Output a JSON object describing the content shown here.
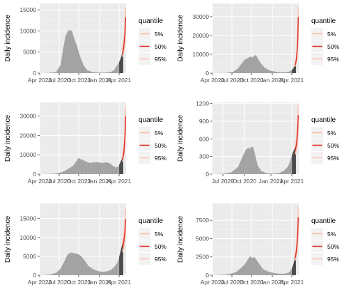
{
  "colors": {
    "panel_bg": "#ebebeb",
    "grid_major": "#ffffff",
    "grid_minor": "#f4f4f4",
    "bar_observed": "#a0a0a0",
    "bar_recent": "#4d4d4d",
    "q05": "#fcbba1",
    "q50": "#de2d26",
    "q95": "#fcc5b4"
  },
  "chart_data": [
    {
      "type": "bar",
      "ylabel": "Daily incidence",
      "x_ticks": [
        "Apr 2020",
        "Jul 2020",
        "Oct 2020",
        "Jan 2021",
        "Apr 2021"
      ],
      "y_ticks": [
        0,
        5000,
        10000,
        15000
      ],
      "y_tick_labels": [
        "0",
        "5000",
        "10000",
        "15000"
      ],
      "ylim": [
        0,
        16500
      ],
      "legend": {
        "title": "quantile",
        "labels": [
          "5%",
          "50%",
          "95%"
        ],
        "position": "right"
      },
      "grid": true,
      "observed_curve": [
        [
          0,
          0
        ],
        [
          40,
          60
        ],
        [
          70,
          250
        ],
        [
          90,
          2000
        ],
        [
          100,
          5500
        ],
        [
          110,
          8500
        ],
        [
          120,
          9800
        ],
        [
          128,
          10300
        ],
        [
          133,
          9900
        ],
        [
          138,
          10200
        ],
        [
          145,
          8800
        ],
        [
          160,
          6500
        ],
        [
          175,
          3800
        ],
        [
          190,
          1800
        ],
        [
          205,
          700
        ],
        [
          225,
          300
        ],
        [
          250,
          150
        ],
        [
          275,
          120
        ],
        [
          295,
          200
        ],
        [
          310,
          350
        ],
        [
          322,
          700
        ],
        [
          332,
          1600
        ],
        [
          342,
          2400
        ]
      ],
      "recent_curve": [
        [
          345,
          2700
        ],
        [
          350,
          3300
        ],
        [
          355,
          4200
        ],
        [
          360,
          5400
        ]
      ],
      "forecast": [
        [
          360,
          5400
        ],
        [
          365,
          7500
        ],
        [
          370,
          10800
        ],
        [
          373,
          15500
        ]
      ]
    },
    {
      "type": "bar",
      "ylabel": "Daily incidence",
      "x_ticks": [
        "Apr 2020",
        "Jul 2020",
        "Oct 2020",
        "Jan 2021",
        "Apr 2021"
      ],
      "y_ticks": [
        0,
        10000,
        20000,
        30000
      ],
      "y_tick_labels": [
        "0",
        "10000",
        "20000",
        "30000"
      ],
      "ylim": [
        0,
        37000
      ],
      "legend": {
        "title": "quantile",
        "labels": [
          "5%",
          "50%",
          "95%"
        ],
        "position": "right"
      },
      "grid": true,
      "observed_curve": [
        [
          0,
          0
        ],
        [
          60,
          100
        ],
        [
          90,
          800
        ],
        [
          110,
          2500
        ],
        [
          125,
          5000
        ],
        [
          140,
          7200
        ],
        [
          155,
          8200
        ],
        [
          165,
          8800
        ],
        [
          172,
          8300
        ],
        [
          180,
          9200
        ],
        [
          188,
          9600
        ],
        [
          195,
          8000
        ],
        [
          210,
          5000
        ],
        [
          225,
          3000
        ],
        [
          245,
          1500
        ],
        [
          265,
          900
        ],
        [
          285,
          600
        ],
        [
          305,
          500
        ],
        [
          322,
          600
        ],
        [
          335,
          900
        ],
        [
          342,
          1500
        ]
      ],
      "recent_curve": [
        [
          345,
          1800
        ],
        [
          350,
          2500
        ],
        [
          355,
          3500
        ],
        [
          360,
          5000
        ]
      ],
      "forecast": [
        [
          360,
          5000
        ],
        [
          365,
          9000
        ],
        [
          370,
          18000
        ],
        [
          373,
          35000
        ]
      ]
    },
    {
      "type": "bar",
      "ylabel": "Daily incidence",
      "x_ticks": [
        "Apr 2020",
        "Jul 2020",
        "Oct 2020",
        "Jan 2021",
        "Apr 2021"
      ],
      "y_ticks": [
        0,
        10000,
        20000,
        30000
      ],
      "y_tick_labels": [
        "0",
        "10000",
        "20000",
        "30000"
      ],
      "ylim": [
        0,
        37000
      ],
      "legend": {
        "title": "quantile",
        "labels": [
          "5%",
          "50%",
          "95%"
        ],
        "position": "right"
      },
      "grid": true,
      "observed_curve": [
        [
          0,
          0
        ],
        [
          60,
          200
        ],
        [
          95,
          1000
        ],
        [
          120,
          2500
        ],
        [
          145,
          4500
        ],
        [
          160,
          7000
        ],
        [
          168,
          8400
        ],
        [
          175,
          7800
        ],
        [
          185,
          7400
        ],
        [
          200,
          6500
        ],
        [
          215,
          5800
        ],
        [
          230,
          6000
        ],
        [
          250,
          6200
        ],
        [
          270,
          5800
        ],
        [
          290,
          6100
        ],
        [
          305,
          5500
        ],
        [
          320,
          4000
        ],
        [
          332,
          3500
        ],
        [
          342,
          4200
        ]
      ],
      "recent_curve": [
        [
          345,
          5000
        ],
        [
          350,
          6200
        ],
        [
          355,
          7500
        ],
        [
          360,
          9000
        ]
      ],
      "forecast": [
        [
          360,
          9000
        ],
        [
          365,
          13000
        ],
        [
          370,
          22000
        ],
        [
          373,
          35000
        ]
      ]
    },
    {
      "type": "bar",
      "ylabel": "Daily incidence",
      "x_ticks": [
        "Jul 2020",
        "Oct 2020",
        "Jan 2021",
        "Apr 2021"
      ],
      "y_ticks": [
        0,
        300,
        600,
        900,
        1200
      ],
      "y_tick_labels": [
        "0",
        "300",
        "600",
        "900",
        "1200"
      ],
      "ylim": [
        0,
        1220
      ],
      "legend": {
        "title": "quantile",
        "labels": [
          "5%",
          "50%",
          "95%"
        ],
        "position": "right"
      },
      "grid": true,
      "observed_curve": [
        [
          0,
          0
        ],
        [
          40,
          5
        ],
        [
          80,
          30
        ],
        [
          110,
          120
        ],
        [
          130,
          300
        ],
        [
          145,
          420
        ],
        [
          155,
          450
        ],
        [
          162,
          430
        ],
        [
          168,
          470
        ],
        [
          175,
          460
        ],
        [
          183,
          350
        ],
        [
          195,
          150
        ],
        [
          210,
          60
        ],
        [
          230,
          20
        ],
        [
          260,
          10
        ],
        [
          290,
          20
        ],
        [
          310,
          60
        ],
        [
          325,
          120
        ],
        [
          335,
          200
        ],
        [
          342,
          300
        ]
      ],
      "recent_curve": [
        [
          345,
          330
        ],
        [
          350,
          380
        ],
        [
          355,
          420
        ],
        [
          360,
          470
        ]
      ],
      "forecast": [
        [
          360,
          470
        ],
        [
          365,
          600
        ],
        [
          370,
          850
        ],
        [
          373,
          1180
        ]
      ]
    },
    {
      "type": "bar",
      "ylabel": "Daily incidence",
      "x_ticks": [
        "Apr 2020",
        "Jul 2020",
        "Oct 2020",
        "Jan 2021",
        "Apr 2021"
      ],
      "y_ticks": [
        0,
        5000,
        10000,
        15000
      ],
      "y_tick_labels": [
        "0",
        "5000",
        "10000",
        "15000"
      ],
      "ylim": [
        0,
        19000
      ],
      "legend": {
        "title": "quantile",
        "labels": [
          "5%",
          "50%",
          "95%"
        ],
        "position": "right"
      },
      "grid": true,
      "observed_curve": [
        [
          0,
          0
        ],
        [
          40,
          150
        ],
        [
          70,
          600
        ],
        [
          90,
          1800
        ],
        [
          105,
          3500
        ],
        [
          120,
          5500
        ],
        [
          135,
          6000
        ],
        [
          150,
          5800
        ],
        [
          165,
          5600
        ],
        [
          180,
          5000
        ],
        [
          195,
          3800
        ],
        [
          210,
          2500
        ],
        [
          230,
          1600
        ],
        [
          250,
          1100
        ],
        [
          270,
          900
        ],
        [
          290,
          1000
        ],
        [
          305,
          1300
        ],
        [
          320,
          2000
        ],
        [
          335,
          3200
        ],
        [
          342,
          4300
        ]
      ],
      "recent_curve": [
        [
          345,
          5000
        ],
        [
          350,
          6200
        ],
        [
          355,
          7500
        ],
        [
          360,
          8500
        ]
      ],
      "forecast": [
        [
          360,
          8500
        ],
        [
          365,
          10500
        ],
        [
          370,
          13500
        ],
        [
          373,
          17500
        ]
      ]
    },
    {
      "type": "bar",
      "ylabel": "Daily incidence",
      "x_ticks": [
        "Apr 2020",
        "Jul 2020",
        "Oct 2020",
        "Jan 2021",
        "Apr 2021"
      ],
      "y_ticks": [
        0,
        2500,
        5000,
        7500
      ],
      "y_tick_labels": [
        "0",
        "2500",
        "5000",
        "7500"
      ],
      "ylim": [
        0,
        9800
      ],
      "legend": {
        "title": "quantile",
        "labels": [
          "5%",
          "50%",
          "95%"
        ],
        "position": "right"
      },
      "grid": true,
      "observed_curve": [
        [
          0,
          0
        ],
        [
          60,
          80
        ],
        [
          100,
          400
        ],
        [
          120,
          900
        ],
        [
          140,
          1500
        ],
        [
          150,
          2000
        ],
        [
          158,
          2400
        ],
        [
          165,
          2600
        ],
        [
          172,
          2300
        ],
        [
          180,
          2500
        ],
        [
          190,
          2100
        ],
        [
          205,
          1400
        ],
        [
          220,
          800
        ],
        [
          240,
          500
        ],
        [
          265,
          300
        ],
        [
          290,
          200
        ],
        [
          310,
          200
        ],
        [
          325,
          300
        ],
        [
          335,
          500
        ],
        [
          342,
          800
        ]
      ],
      "recent_curve": [
        [
          345,
          1000
        ],
        [
          350,
          1400
        ],
        [
          355,
          2000
        ],
        [
          360,
          2800
        ]
      ],
      "forecast": [
        [
          360,
          2800
        ],
        [
          365,
          4000
        ],
        [
          370,
          6200
        ],
        [
          373,
          9300
        ]
      ]
    }
  ]
}
